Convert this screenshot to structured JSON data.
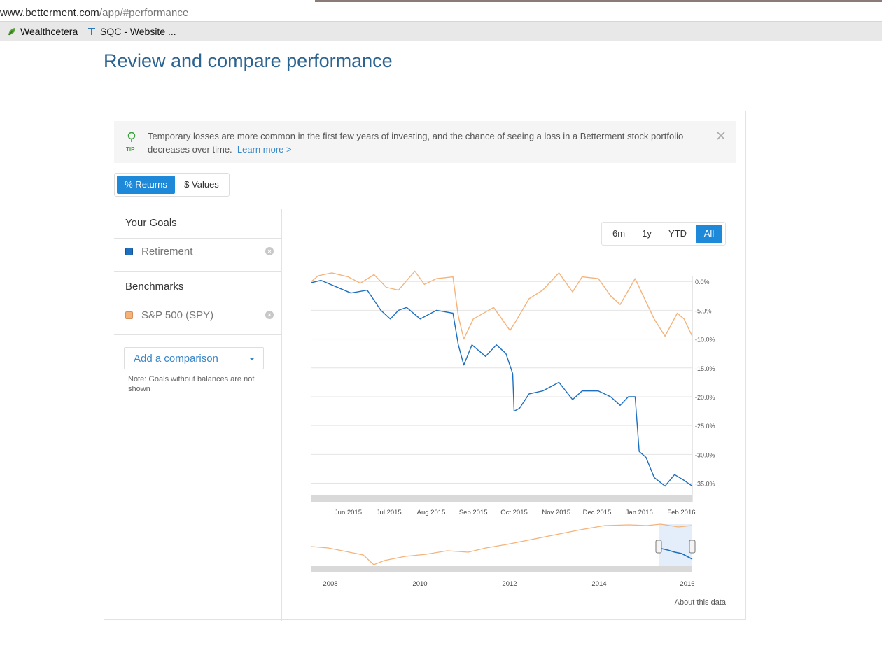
{
  "browser": {
    "url_host": "www.betterment.com",
    "url_path": "/app/#performance",
    "bookmarks": [
      {
        "label": "Wealthcetera",
        "icon": "leaf-icon"
      },
      {
        "label": "SQC - Website ...",
        "icon": "site-icon"
      }
    ]
  },
  "page": {
    "title": "Review and compare performance"
  },
  "tip": {
    "label": "TIP",
    "text": "Temporary losses are more common in the first few years of investing, and the chance of seeing a loss in a Betterment stock portfolio decreases over time.",
    "link": "Learn more >"
  },
  "toggle": {
    "returns_label": "% Returns",
    "values_label": "$ Values",
    "selected": "returns"
  },
  "sidebar": {
    "goals_heading": "Your Goals",
    "goals": [
      {
        "label": "Retirement",
        "color": "#1e6fbf"
      }
    ],
    "benchmarks_heading": "Benchmarks",
    "benchmarks": [
      {
        "label": "S&P 500 (SPY)",
        "color": "#f5b37a"
      }
    ],
    "add_label": "Add a comparison",
    "note": "Note: Goals without balances are not shown"
  },
  "ranges": {
    "items": [
      "6m",
      "1y",
      "YTD",
      "All"
    ],
    "selected": "All"
  },
  "about_label": "About this data",
  "chart_data": {
    "type": "line",
    "y_unit": "%",
    "ylim": [
      -37,
      1
    ],
    "y_ticks": [
      "0.0%",
      "-5.0%",
      "-10.0%",
      "-15.0%",
      "-20.0%",
      "-25.0%",
      "-30.0%",
      "-35.0%"
    ],
    "x_ticks": [
      "Jun 2015",
      "Jul 2015",
      "Aug 2015",
      "Sep 2015",
      "Oct 2015",
      "Nov 2015",
      "Dec 2015",
      "Jan 2016",
      "Feb 2016"
    ],
    "grid": true,
    "series": [
      {
        "name": "S&P 500 (SPY)",
        "color": "#f5b37a",
        "points": [
          [
            "2015-05-05",
            0.0
          ],
          [
            "2015-05-10",
            1.0
          ],
          [
            "2015-05-20",
            1.5
          ],
          [
            "2015-06-01",
            0.8
          ],
          [
            "2015-06-10",
            -0.3
          ],
          [
            "2015-06-20",
            1.2
          ],
          [
            "2015-06-29",
            -1.0
          ],
          [
            "2015-07-08",
            -1.5
          ],
          [
            "2015-07-20",
            1.8
          ],
          [
            "2015-07-27",
            -0.5
          ],
          [
            "2015-08-05",
            0.5
          ],
          [
            "2015-08-17",
            0.8
          ],
          [
            "2015-08-21",
            -6.0
          ],
          [
            "2015-08-25",
            -10.0
          ],
          [
            "2015-09-01",
            -6.5
          ],
          [
            "2015-09-16",
            -4.5
          ],
          [
            "2015-09-28",
            -8.5
          ],
          [
            "2015-10-02",
            -7.0
          ],
          [
            "2015-10-12",
            -3.0
          ],
          [
            "2015-10-22",
            -1.5
          ],
          [
            "2015-11-03",
            1.5
          ],
          [
            "2015-11-13",
            -1.8
          ],
          [
            "2015-11-20",
            0.8
          ],
          [
            "2015-12-02",
            0.5
          ],
          [
            "2015-12-11",
            -2.5
          ],
          [
            "2015-12-18",
            -4.0
          ],
          [
            "2015-12-29",
            0.5
          ],
          [
            "2016-01-06",
            -3.5
          ],
          [
            "2016-01-12",
            -6.5
          ],
          [
            "2016-01-20",
            -9.5
          ],
          [
            "2016-01-29",
            -5.5
          ],
          [
            "2016-02-03",
            -6.5
          ],
          [
            "2016-02-09",
            -9.5
          ]
        ]
      },
      {
        "name": "Retirement",
        "color": "#1e6fbf",
        "points": [
          [
            "2015-05-05",
            -0.2
          ],
          [
            "2015-05-12",
            0.2
          ],
          [
            "2015-05-22",
            -0.8
          ],
          [
            "2015-06-03",
            -2.0
          ],
          [
            "2015-06-15",
            -1.5
          ],
          [
            "2015-06-25",
            -5.0
          ],
          [
            "2015-07-02",
            -6.5
          ],
          [
            "2015-07-08",
            -5.0
          ],
          [
            "2015-07-14",
            -4.5
          ],
          [
            "2015-07-24",
            -6.5
          ],
          [
            "2015-08-05",
            -5.0
          ],
          [
            "2015-08-17",
            -5.5
          ],
          [
            "2015-08-21",
            -11.0
          ],
          [
            "2015-08-25",
            -14.5
          ],
          [
            "2015-08-31",
            -11.0
          ],
          [
            "2015-09-10",
            -13.0
          ],
          [
            "2015-09-18",
            -11.0
          ],
          [
            "2015-09-25",
            -12.5
          ],
          [
            "2015-09-30",
            -16.0
          ],
          [
            "2015-10-01",
            -22.5
          ],
          [
            "2015-10-05",
            -22.0
          ],
          [
            "2015-10-12",
            -19.5
          ],
          [
            "2015-10-22",
            -19.0
          ],
          [
            "2015-11-03",
            -17.5
          ],
          [
            "2015-11-13",
            -20.5
          ],
          [
            "2015-11-20",
            -19.0
          ],
          [
            "2015-12-02",
            -19.0
          ],
          [
            "2015-12-11",
            -20.0
          ],
          [
            "2015-12-18",
            -21.5
          ],
          [
            "2015-12-24",
            -20.0
          ],
          [
            "2015-12-29",
            -20.0
          ],
          [
            "2016-01-01",
            -29.5
          ],
          [
            "2016-01-06",
            -30.5
          ],
          [
            "2016-01-12",
            -34.0
          ],
          [
            "2016-01-20",
            -35.5
          ],
          [
            "2016-01-27",
            -33.5
          ],
          [
            "2016-02-03",
            -34.5
          ],
          [
            "2016-02-09",
            -35.5
          ]
        ]
      }
    ],
    "navigator": {
      "x_ticks": [
        "2008",
        "2010",
        "2012",
        "2014",
        "2016"
      ],
      "selection": [
        "2015-05-05",
        "2016-02-09"
      ]
    }
  }
}
